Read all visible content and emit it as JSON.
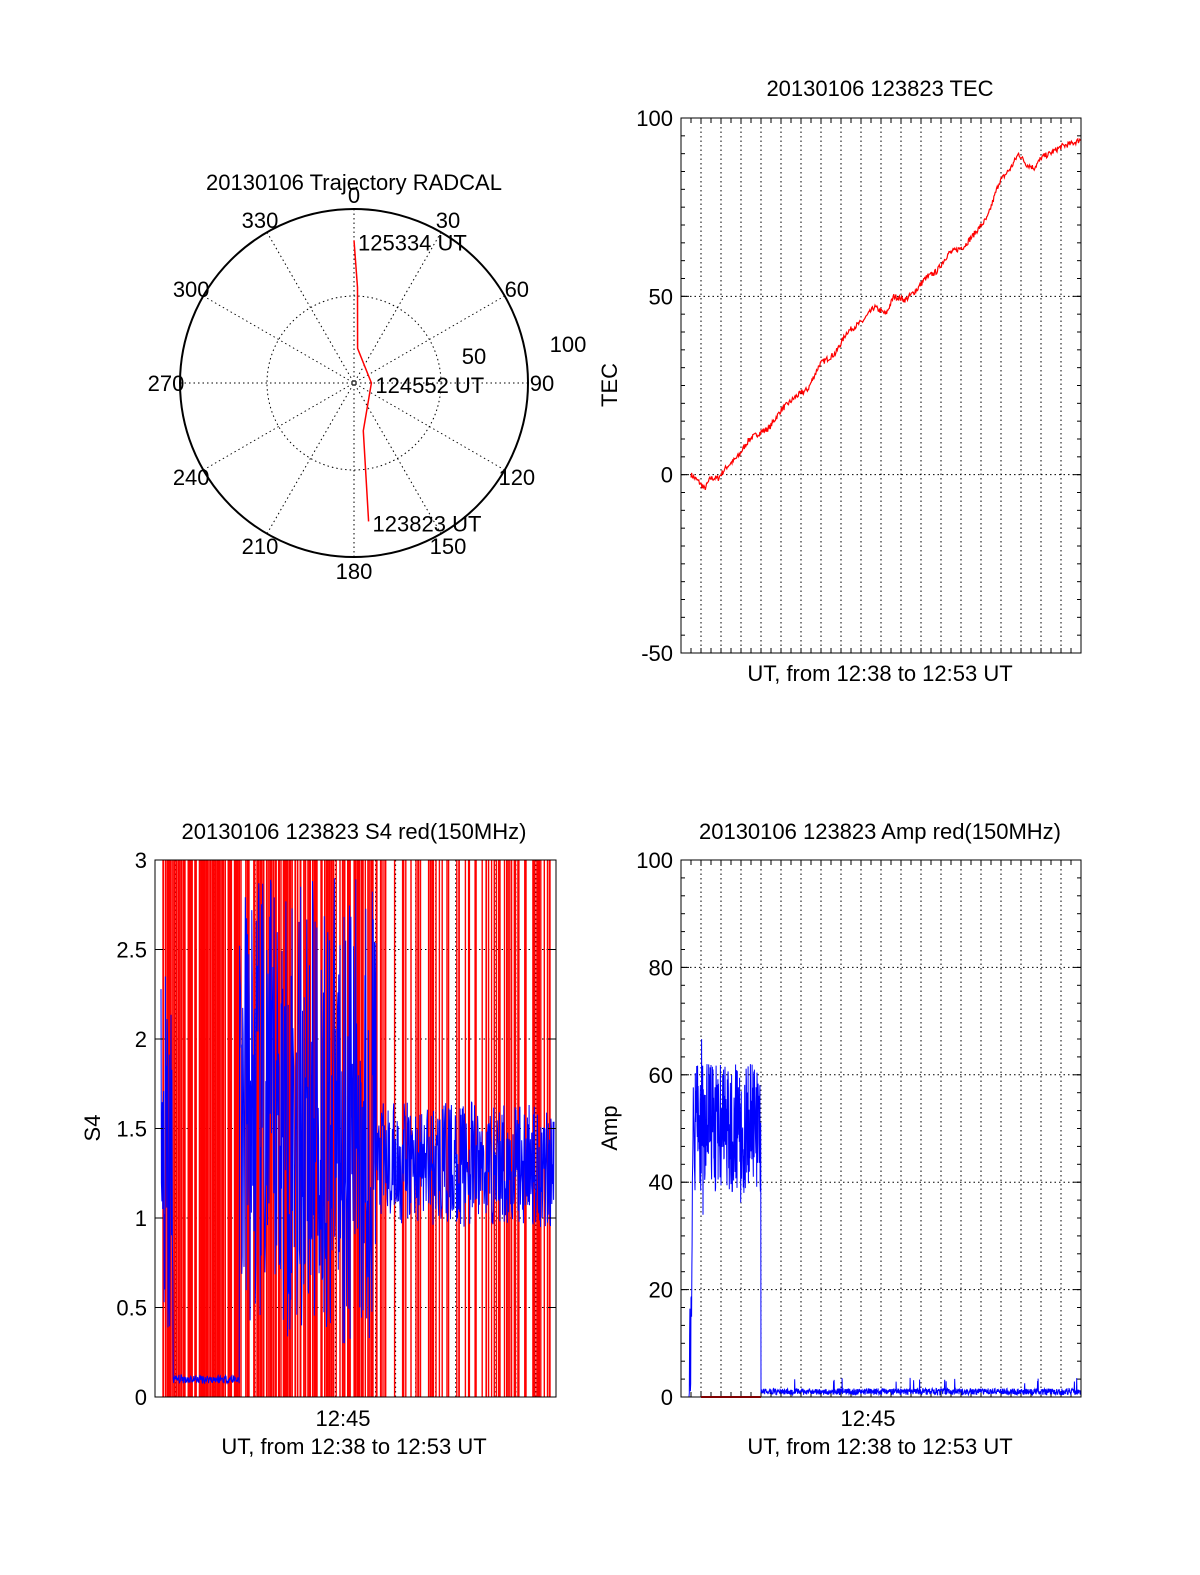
{
  "colors": {
    "red": "#ff0000",
    "blue": "#0000ff",
    "axis": "#000000",
    "grid": "#000000"
  },
  "chart_data": [
    {
      "type": "polar",
      "title": "20130106 Trajectory RADCAL",
      "azimuth_labels": [
        "0",
        "30",
        "60",
        "90",
        "120",
        "150",
        "180",
        "210",
        "240",
        "270",
        "300",
        "330"
      ],
      "radial_labels": [
        "50",
        "100"
      ],
      "radial_range": [
        0,
        100
      ],
      "grid": true,
      "series": [
        {
          "color": "red",
          "points": [
            {
              "az": 0,
              "r": 82
            },
            {
              "az": 2.1,
              "r": 55
            },
            {
              "az": 6,
              "r": 20
            },
            {
              "az": 90,
              "r": 10
            },
            {
              "az": 169,
              "r": 28
            },
            {
              "az": 174,
              "r": 80
            }
          ]
        }
      ],
      "annotations": [
        {
          "text": "125334 UT",
          "az": 0,
          "r": 82
        },
        {
          "text": "124552 UT",
          "az": 90,
          "r": 10
        },
        {
          "text": "123823 UT",
          "az": 174,
          "r": 80
        }
      ]
    },
    {
      "type": "line",
      "title": "20130106 123823 TEC",
      "xlabel": "UT, from 12:38 to 12:53 UT",
      "ylabel": "TEC",
      "ylim": [
        -50,
        100
      ],
      "yticks": [
        "-50",
        "0",
        "50",
        "100"
      ],
      "grid": true,
      "series": [
        {
          "color": "red",
          "x": [
            0,
            0.02,
            0.035,
            0.05,
            0.07,
            0.09,
            0.12,
            0.15,
            0.18,
            0.2,
            0.23,
            0.27,
            0.3,
            0.33,
            0.37,
            0.4,
            0.44,
            0.47,
            0.5,
            0.52,
            0.55,
            0.58,
            0.6,
            0.63,
            0.66,
            0.7,
            0.73,
            0.76,
            0.79,
            0.82,
            0.84,
            0.86,
            0.88,
            0.9,
            0.92,
            0.95,
            0.98,
            1.0
          ],
          "values": [
            0,
            -2,
            -4,
            -1,
            -1,
            2,
            5,
            10,
            12,
            13,
            18,
            22,
            24,
            31,
            34,
            40,
            43,
            47,
            45,
            50,
            49,
            52,
            55,
            57,
            62,
            64,
            68,
            72,
            82,
            86,
            90,
            87,
            86,
            89,
            90,
            92,
            93,
            94
          ]
        }
      ]
    },
    {
      "type": "line",
      "title": "20130106 123823 S4 red(150MHz)",
      "xlabel": "UT, from 12:38 to 12:53 UT",
      "ylabel": "S4",
      "xticks": [
        "12:45"
      ],
      "ylim": [
        0,
        3
      ],
      "yticks": [
        "0",
        "0.5",
        "1",
        "1.5",
        "2",
        "2.5",
        "3"
      ],
      "grid": true,
      "series": [
        {
          "color": "red",
          "description": "dense vertical spikes spanning 0 to 3"
        },
        {
          "color": "blue",
          "description": "noisy S4 trace around 1.0 to 1.6"
        }
      ]
    },
    {
      "type": "line",
      "title": "20130106 123823 Amp red(150MHz)",
      "xlabel": "UT, from 12:38 to 12:53 UT",
      "ylabel": "Amp",
      "xticks": [
        "12:45"
      ],
      "ylim": [
        0,
        100
      ],
      "yticks": [
        "0",
        "20",
        "40",
        "60",
        "80",
        "100"
      ],
      "grid": true,
      "series": [
        {
          "color": "blue",
          "x_range": [
            0.02,
            0.2
          ],
          "level": 50,
          "amplitude": 12,
          "after_level": 1
        },
        {
          "color": "red",
          "x_range": [
            0.05,
            0.2
          ],
          "level": 0
        }
      ]
    }
  ]
}
